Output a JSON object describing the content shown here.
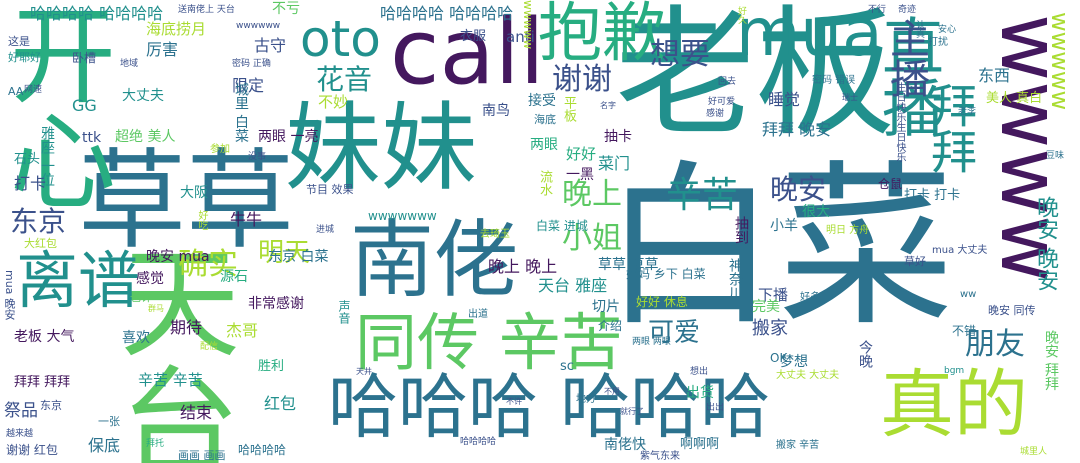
{
  "palette": {
    "purple": "#44185e",
    "indigo": "#3b518b",
    "blue": "#2c728e",
    "teal": "#21908d",
    "green": "#27ad81",
    "lime": "#5cc863",
    "yellowgreen": "#aadc32",
    "background": "#ffffff"
  },
  "words": [
    {
      "text": "白菜"
    },
    {
      "text": "老板"
    },
    {
      "text": "草草"
    },
    {
      "text": "妹妹"
    },
    {
      "text": "开心"
    },
    {
      "text": "天台"
    },
    {
      "text": "call"
    },
    {
      "text": "南佬"
    },
    {
      "text": "哈哈哈 哈哈哈"
    },
    {
      "text": "wwww"
    },
    {
      "text": "真的"
    },
    {
      "text": "抱歉"
    },
    {
      "text": "mua"
    },
    {
      "text": "直播"
    },
    {
      "text": "同传 辛苦"
    },
    {
      "text": "离谱"
    },
    {
      "text": "oto"
    },
    {
      "text": "拜拜"
    },
    {
      "text": "主播"
    },
    {
      "text": "晚安 晚安"
    },
    {
      "text": "wwwww"
    },
    {
      "text": "辛苦"
    },
    {
      "text": "晚安"
    },
    {
      "text": "朋友"
    },
    {
      "text": "东京"
    },
    {
      "text": "晚上"
    },
    {
      "text": "小姐"
    },
    {
      "text": "谢谢"
    },
    {
      "text": "想要"
    },
    {
      "text": "确实"
    },
    {
      "text": "明天"
    },
    {
      "text": "可爱"
    },
    {
      "text": "花音"
    },
    {
      "text": "哈哈哈哈 哈哈哈哈"
    },
    {
      "text": "哈哈哈哈 哈哈哈哈"
    },
    {
      "text": "东西"
    },
    {
      "text": "睡觉"
    },
    {
      "text": "拜拜 晚安"
    },
    {
      "text": "海底捞月"
    },
    {
      "text": "厉害"
    },
    {
      "text": "古守"
    },
    {
      "text": "限定"
    },
    {
      "text": "城里 白菜"
    },
    {
      "text": "不妙"
    },
    {
      "text": "GG"
    },
    {
      "text": "ttk"
    },
    {
      "text": "大丈夫"
    },
    {
      "text": "两眼 一亮"
    },
    {
      "text": "超绝 美人"
    },
    {
      "text": "雅座 一位"
    },
    {
      "text": "打卡"
    },
    {
      "text": "石头"
    },
    {
      "text": "牛牛"
    },
    {
      "text": "大阪"
    },
    {
      "text": "晚安 mua"
    },
    {
      "text": "东京 白菜"
    },
    {
      "text": "感觉"
    },
    {
      "text": "源石"
    },
    {
      "text": "非常感谢"
    },
    {
      "text": "老板 大气"
    },
    {
      "text": "期待"
    },
    {
      "text": "喜欢"
    },
    {
      "text": "杰哥"
    },
    {
      "text": "拜拜 拜拜"
    },
    {
      "text": "辛苦 辛苦"
    },
    {
      "text": "祭品"
    },
    {
      "text": "结束"
    },
    {
      "text": "红包"
    },
    {
      "text": "保底"
    },
    {
      "text": "胜利"
    },
    {
      "text": "哈哈哈哈"
    },
    {
      "text": "南佬快"
    },
    {
      "text": "啊啊啊"
    },
    {
      "text": "出货"
    },
    {
      "text": "梦想"
    },
    {
      "text": "搬家"
    },
    {
      "text": "下播"
    },
    {
      "text": "天台 雅座"
    },
    {
      "text": "晚上 晚上"
    },
    {
      "text": "草草 草草"
    },
    {
      "text": "菜门"
    },
    {
      "text": "抽卡"
    },
    {
      "text": "好好"
    },
    {
      "text": "两眼"
    },
    {
      "text": "接受"
    },
    {
      "text": "南鸟"
    },
    {
      "text": "切片"
    },
    {
      "text": "好好 休息"
    },
    {
      "text": "完美"
    },
    {
      "text": "小羊"
    },
    {
      "text": "很大"
    },
    {
      "text": "打卡 打卡"
    },
    {
      "text": "美人 真白"
    },
    {
      "text": "衣服"
    },
    {
      "text": "不亏"
    },
    {
      "text": "anti"
    },
    {
      "text": "wwwww"
    },
    {
      "text": "wwwwwww"
    },
    {
      "text": "一黑"
    },
    {
      "text": "平板"
    },
    {
      "text": "流水"
    },
    {
      "text": "海底"
    },
    {
      "text": "晚安 同传"
    },
    {
      "text": "不错"
    },
    {
      "text": "今晚"
    },
    {
      "text": "OK"
    },
    {
      "text": "晚安 拜拜"
    },
    {
      "text": "神奈川"
    },
    {
      "text": "白菜 进城"
    },
    {
      "text": "妈妈 乡下 白菜"
    },
    {
      "text": "介绍"
    },
    {
      "text": "抽到"
    },
    {
      "text": "仓鼠"
    },
    {
      "text": "节目 效果"
    },
    {
      "text": "谢谢 红包"
    },
    {
      "text": "一张"
    },
    {
      "text": "也许"
    },
    {
      "text": "mua 晚安"
    },
    {
      "text": "大红包"
    },
    {
      "text": "画画 画画"
    },
    {
      "text": "声音"
    },
    {
      "text": "地方"
    },
    {
      "text": "出道"
    },
    {
      "text": "去琦玉"
    },
    {
      "text": "明日 方舟"
    },
    {
      "text": "mua 大丈夫"
    },
    {
      "text": "草好"
    },
    {
      "text": "好多"
    },
    {
      "text": "sc"
    },
    {
      "text": "ww"
    },
    {
      "text": "大丈夫 大丈夫"
    },
    {
      "text": "搬家 辛苦"
    },
    {
      "text": "紫气东来"
    },
    {
      "text": "越来越"
    },
    {
      "text": "这是"
    },
    {
      "text": "好耶好"
    },
    {
      "text": "AA"
    },
    {
      "text": "卧槽"
    },
    {
      "text": "密码 正确"
    },
    {
      "text": "密码 错误"
    },
    {
      "text": "打扰"
    },
    {
      "text": "bgm"
    },
    {
      "text": "想出"
    },
    {
      "text": "两眼 两眼"
    },
    {
      "text": "东京"
    },
    {
      "text": "拜托"
    },
    {
      "text": "进城"
    },
    {
      "text": "参加"
    },
    {
      "text": "没事"
    },
    {
      "text": "好吃"
    },
    {
      "text": "wwwwww"
    },
    {
      "text": "回去"
    },
    {
      "text": "好可爱"
    },
    {
      "text": "认真"
    },
    {
      "text": "安心"
    },
    {
      "text": "送南佬上 天台"
    },
    {
      "text": "不行"
    },
    {
      "text": "奇迹"
    },
    {
      "text": "生日快乐生日快乐"
    },
    {
      "text": "好久"
    },
    {
      "text": "地域"
    },
    {
      "text": "网速"
    },
    {
      "text": "城里人"
    },
    {
      "text": "不用"
    },
    {
      "text": "不许"
    },
    {
      "text": "天井"
    },
    {
      "text": "配信"
    },
    {
      "text": "就行了"
    },
    {
      "text": "群马"
    },
    {
      "text": "哈哈哈哈"
    },
    {
      "text": "豆味"
    },
    {
      "text": "老李"
    },
    {
      "text": "感谢"
    },
    {
      "text": "名字"
    },
    {
      "text": "瑞士"
    },
    {
      "text": "出出"
    }
  ]
}
